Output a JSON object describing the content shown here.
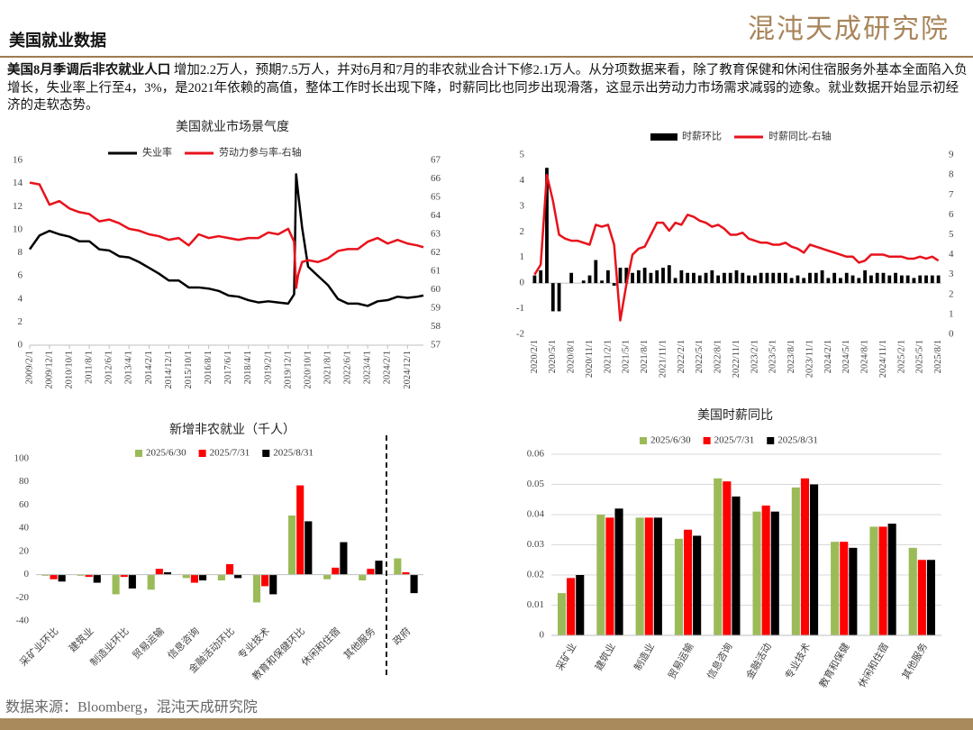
{
  "header": {
    "title": "美国就业数据",
    "logo": "混沌天成研究院"
  },
  "summary": {
    "lead": "美国8月季调后非农就业人口",
    "text": " 增加2.2万人，预期7.5万人，并对6月和7月的非农就业合计下修2.1万人。从分项数据来看，除了教育保健和休闲住宿服务外基本全面陷入负增长，失业率上行至4，3%，是2021年依赖的高值，整体工作时长出现下降，时薪同比也同步出现滑落，这显示出劳动力市场需求减弱的迹象。就业数据开始显示初经济的走软态势。"
  },
  "chart_data": [
    {
      "type": "line",
      "title": "美国就业市场景气度",
      "x": [
        "2009/2/1",
        "2009/7/1",
        "2009/12/1",
        "2010/5/1",
        "2010/10/1",
        "2011/3/1",
        "2011/8/1",
        "2012/1/1",
        "2012/6/1",
        "2012/11/1",
        "2013/4/1",
        "2013/9/1",
        "2014/2/1",
        "2014/7/1",
        "2014/12/1",
        "2015/5/1",
        "2015/10/1",
        "2016/3/1",
        "2016/8/1",
        "2017/1/1",
        "2017/6/1",
        "2017/11/1",
        "2018/4/1",
        "2018/9/1",
        "2019/2/1",
        "2019/7/1",
        "2019/12/1",
        "2020/3/1",
        "2020/4/1",
        "2020/5/1",
        "2020/7/1",
        "2020/10/1",
        "2021/3/1",
        "2021/8/1",
        "2022/1/1",
        "2022/6/1",
        "2022/11/1",
        "2023/4/1",
        "2023/9/1",
        "2024/2/1",
        "2024/7/1",
        "2024/12/1",
        "2025/5/1",
        "2025/8/1"
      ],
      "series": [
        {
          "name": "失业率",
          "color": "#000000",
          "values": [
            8.3,
            9.5,
            9.9,
            9.6,
            9.4,
            9.0,
            9.0,
            8.3,
            8.2,
            7.7,
            7.6,
            7.2,
            6.7,
            6.2,
            5.6,
            5.6,
            5.0,
            5.0,
            4.9,
            4.7,
            4.3,
            4.2,
            3.9,
            3.7,
            3.8,
            3.7,
            3.6,
            4.4,
            14.8,
            13.2,
            10.2,
            6.8,
            6.0,
            5.2,
            4.0,
            3.6,
            3.6,
            3.4,
            3.8,
            3.9,
            4.2,
            4.1,
            4.2,
            4.3
          ]
        },
        {
          "name": "劳动力参与率-右轴",
          "color": "#e8121b",
          "axis": "y2",
          "values": [
            65.8,
            65.7,
            64.6,
            64.8,
            64.4,
            64.2,
            64.1,
            63.7,
            63.8,
            63.6,
            63.3,
            63.2,
            63.0,
            62.9,
            62.7,
            62.8,
            62.4,
            63.0,
            62.8,
            62.9,
            62.8,
            62.7,
            62.8,
            62.8,
            63.1,
            63.0,
            63.3,
            62.6,
            60.1,
            60.8,
            61.5,
            61.6,
            61.5,
            61.7,
            62.1,
            62.2,
            62.2,
            62.6,
            62.8,
            62.5,
            62.7,
            62.5,
            62.4,
            62.3
          ]
        }
      ],
      "xlim": [
        "2009/2/1",
        "2025/8/1"
      ],
      "xticks": [
        "2009/2/1",
        "2009/12/1",
        "2010/10/1",
        "2011/8/1",
        "2012/6/1",
        "2013/4/1",
        "2014/2/1",
        "2014/12/1",
        "2015/10/1",
        "2016/8/1",
        "2017/6/1",
        "2018/4/1",
        "2019/2/1",
        "2019/12/1",
        "2020/10/1",
        "2021/8/1",
        "2022/6/1",
        "2023/4/1",
        "2024/2/1",
        "2024/12/1"
      ],
      "ylim": [
        0,
        16
      ],
      "yticks": [
        0,
        2,
        4,
        6,
        8,
        10,
        12,
        14,
        16
      ],
      "y2lim": [
        57,
        67
      ],
      "y2ticks": [
        57,
        58,
        59,
        60,
        61,
        62,
        63,
        64,
        65,
        66,
        67
      ]
    },
    {
      "type": "combo",
      "categories": [
        "2020/2/1",
        null,
        null,
        "2020/5/1",
        null,
        null,
        "2020/8/1",
        null,
        null,
        "2020/11/1",
        null,
        null,
        "2021/2/1",
        null,
        null,
        "2021/5/1",
        null,
        null,
        "2021/8/1",
        null,
        null,
        "2021/11/1",
        null,
        null,
        "2022/2/1",
        null,
        null,
        "2022/5/1",
        null,
        null,
        "2022/8/1",
        null,
        null,
        "2022/11/1",
        null,
        null,
        "2023/2/1",
        null,
        null,
        "2023/5/1",
        null,
        null,
        "2023/8/1",
        null,
        null,
        "2023/11/1",
        null,
        null,
        "2024/2/1",
        null,
        null,
        "2024/5/1",
        null,
        null,
        "2024/8/1",
        null,
        null,
        "2024/11/1",
        null,
        null,
        "2025/2/1",
        null,
        null,
        "2025/5/1",
        null,
        null,
        "2025/8/1"
      ],
      "series": [
        {
          "name": "时薪环比",
          "color": "#000000",
          "type": "bar",
          "values": [
            0.3,
            0.5,
            4.5,
            -1.1,
            -1.1,
            0,
            0.4,
            0,
            0.1,
            0.3,
            0.9,
            0.1,
            0.5,
            -0.1,
            0.6,
            0.6,
            0.4,
            0.5,
            0.6,
            0.4,
            0.5,
            0.6,
            0.7,
            0.2,
            0.5,
            0.4,
            0.4,
            0.3,
            0.4,
            0.5,
            0.3,
            0.4,
            0.4,
            0.5,
            0.4,
            0.3,
            0.3,
            0.4,
            0.4,
            0.4,
            0.4,
            0.4,
            0.2,
            0.3,
            0.2,
            0.4,
            0.4,
            0.5,
            0.2,
            0.4,
            0.2,
            0.4,
            0.3,
            0.2,
            0.5,
            0.3,
            0.4,
            0.4,
            0.3,
            0.4,
            0.3,
            0.3,
            0.2,
            0.3,
            0.3,
            0.3,
            0.3
          ]
        },
        {
          "name": "时薪同比-右轴",
          "color": "#e8121b",
          "type": "line",
          "axis": "y2",
          "values": [
            3.0,
            3.5,
            8.0,
            6.7,
            5.0,
            4.8,
            4.7,
            4.7,
            4.6,
            4.5,
            5.5,
            5.4,
            5.5,
            4.5,
            0.7,
            2.5,
            4.0,
            4.3,
            4.4,
            5.0,
            5.6,
            5.6,
            5.2,
            5.6,
            5.5,
            6.0,
            5.9,
            5.7,
            5.6,
            5.4,
            5.5,
            5.3,
            5.0,
            5.0,
            5.1,
            4.8,
            4.7,
            4.6,
            4.6,
            4.5,
            4.5,
            4.6,
            4.4,
            4.3,
            4.1,
            4.5,
            4.4,
            4.3,
            4.2,
            4.1,
            4.0,
            3.9,
            3.9,
            3.6,
            3.7,
            4.0,
            4.0,
            4.0,
            3.9,
            3.9,
            3.9,
            3.8,
            3.8,
            3.9,
            3.8,
            3.9,
            3.7
          ]
        }
      ],
      "ylim": [
        -2,
        5
      ],
      "yticks": [
        -2,
        -1,
        0,
        1,
        2,
        3,
        4,
        5
      ],
      "y2lim": [
        0,
        9
      ],
      "y2ticks": [
        0,
        1,
        2,
        3,
        4,
        5,
        6,
        7,
        8,
        9
      ]
    },
    {
      "type": "bar",
      "title": "新增非农就业（千人）",
      "categories": [
        "采矿业环比",
        "建筑业",
        "制造业环比",
        "贸易运输",
        "信息咨询",
        "金融活动环比",
        "专业技术",
        "教育和保健环比",
        "休闲和住宿",
        "其他服务",
        "政府"
      ],
      "series": [
        {
          "name": "2025/6/30",
          "color": "#9bbb59",
          "values": [
            -1,
            -1,
            -17,
            -13,
            -3,
            -5,
            -24,
            51,
            -4,
            -5,
            14
          ]
        },
        {
          "name": "2025/7/31",
          "color": "#ff0000",
          "values": [
            -4,
            -2,
            -2,
            5,
            -7,
            9,
            -10,
            77,
            6,
            5,
            2
          ]
        },
        {
          "name": "2025/8/31",
          "color": "#000000",
          "values": [
            -6,
            -7,
            -12,
            2,
            -5,
            -3,
            -17,
            46,
            28,
            12,
            -16
          ]
        }
      ],
      "ylim": [
        -40,
        100
      ],
      "yticks": [
        -40,
        -20,
        0,
        20,
        40,
        60,
        80,
        100
      ],
      "grid": false
    },
    {
      "type": "bar",
      "title": "美国时薪同比",
      "categories": [
        "采矿业",
        "建筑业",
        "制造业",
        "贸易运输",
        "信息咨询",
        "金融活动",
        "专业技术",
        "教育和保健",
        "休闲和住宿",
        "其他服务"
      ],
      "series": [
        {
          "name": "2025/6/30",
          "color": "#9bbb59",
          "values": [
            0.014,
            0.04,
            0.039,
            0.032,
            0.052,
            0.041,
            0.049,
            0.031,
            0.036,
            0.029
          ]
        },
        {
          "name": "2025/7/31",
          "color": "#ff0000",
          "values": [
            0.019,
            0.039,
            0.039,
            0.035,
            0.051,
            0.043,
            0.052,
            0.031,
            0.036,
            0.025
          ]
        },
        {
          "name": "2025/8/31",
          "color": "#000000",
          "values": [
            0.02,
            0.042,
            0.039,
            0.033,
            0.046,
            0.041,
            0.05,
            0.029,
            0.037,
            0.025
          ]
        }
      ],
      "ylim": [
        0,
        0.06
      ],
      "yticks": [
        0,
        0.01,
        0.02,
        0.03,
        0.04,
        0.05,
        0.06
      ],
      "grid": true
    }
  ],
  "footer": {
    "source": "数据来源：Bloomberg，混沌天成研究院"
  }
}
